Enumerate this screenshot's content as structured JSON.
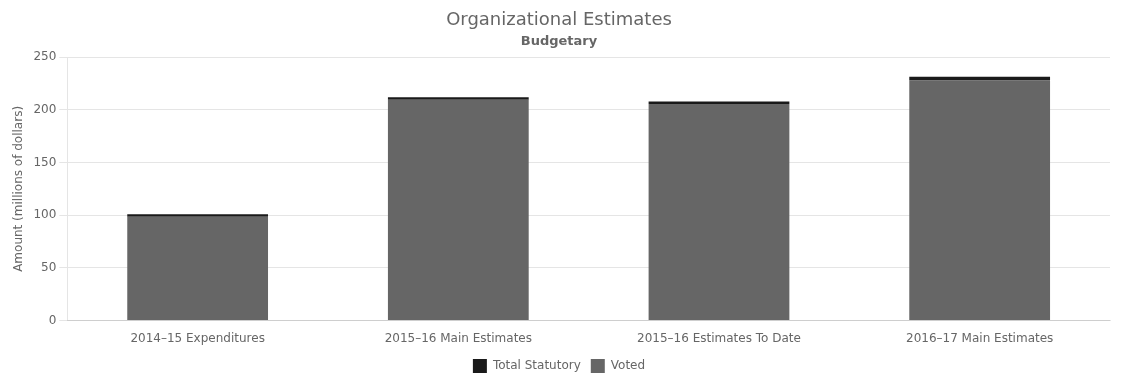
{
  "chart_data": {
    "type": "bar",
    "title": "Organizational Estimates",
    "subtitle": "Budgetary",
    "ylabel": "Amount (millions of dollars)",
    "categories": [
      "2014–15 Expenditures",
      "2015–16 Main Estimates",
      "2015–16 Estimates To Date",
      "2016–17 Main Estimates"
    ],
    "series": [
      {
        "name": "Voted",
        "color": "#666666",
        "values": [
          98.5,
          209.5,
          205.5,
          228.0
        ]
      },
      {
        "name": "Total Statutory",
        "color": "#1a1a1a",
        "values": [
          2.5,
          2.5,
          2.5,
          3.5
        ]
      }
    ],
    "stacked": true,
    "ylim": [
      0,
      250
    ],
    "yticks": [
      0,
      50,
      100,
      150,
      200,
      250
    ],
    "grid": true,
    "legend": "bottom"
  }
}
